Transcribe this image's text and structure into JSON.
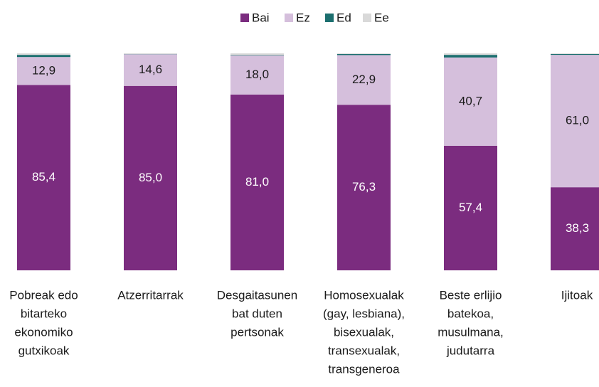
{
  "chart_data": {
    "type": "stacked_bar",
    "categories": [
      [
        "Pobreak edo",
        "bitarteko",
        "ekonomiko",
        "gutxikoak"
      ],
      [
        "Atzerritarrak"
      ],
      [
        "Desgaitasunen",
        "bat duten",
        "pertsonak"
      ],
      [
        "Homosexualak",
        "(gay, lesbiana),",
        "bisexualak,",
        "transexualak,",
        "transgeneroa"
      ],
      [
        "Beste erlijio",
        "batekoa,",
        "musulmana,",
        "judutarra"
      ],
      [
        "Ijitoak"
      ]
    ],
    "series": [
      {
        "name": "Bai",
        "color": "#7b2c7f",
        "values": [
          85.4,
          85.0,
          81.0,
          76.3,
          57.4,
          38.3
        ],
        "value_labels": [
          "85,4",
          "85,0",
          "81,0",
          "76,3",
          "57,4",
          "38,3"
        ]
      },
      {
        "name": "Ez",
        "color": "#d5bfdc",
        "values": [
          12.9,
          14.6,
          18.0,
          22.9,
          40.7,
          61.0
        ],
        "value_labels": [
          "12,9",
          "14,6",
          "18,0",
          "22,9",
          "40,7",
          "61,0"
        ]
      },
      {
        "name": "Ed",
        "color": "#1c6f6f",
        "values": [
          1.0,
          0.1,
          0.2,
          0.5,
          1.2,
          0.4
        ]
      },
      {
        "name": "Ee",
        "color": "#d9d9d9",
        "values": [
          0.7,
          0.3,
          0.8,
          0.3,
          0.7,
          0.3
        ]
      }
    ],
    "ylim": [
      0,
      100
    ],
    "legend": "top"
  }
}
